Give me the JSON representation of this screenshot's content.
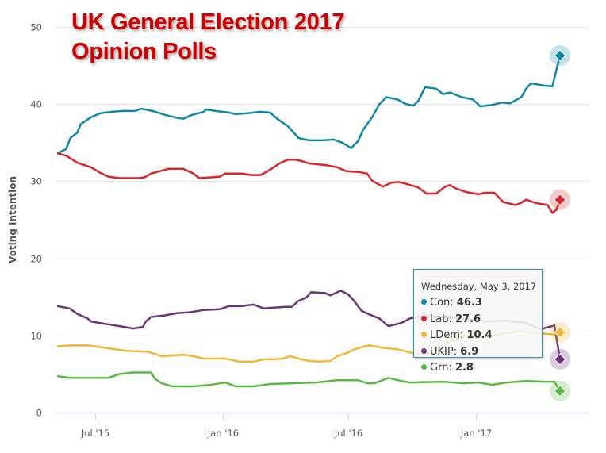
{
  "chart_data": {
    "type": "line",
    "title": "UK General Election 2017\nOpinion Polls",
    "title_lines": [
      "UK General Election 2017",
      "Opinion Polls"
    ],
    "xlabel": "",
    "ylabel": "Voting Intention",
    "ylim": [
      0,
      50
    ],
    "y_ticks": [
      0,
      10,
      20,
      30,
      40,
      50
    ],
    "x_range": [
      "2015-05-08",
      "2017-05-03"
    ],
    "x_ticks": [
      {
        "date": "2015-07-01",
        "label": "Jul '15"
      },
      {
        "date": "2016-01-01",
        "label": "Jan '16"
      },
      {
        "date": "2016-07-01",
        "label": "Jul '16"
      },
      {
        "date": "2017-01-01",
        "label": "Jan '17"
      }
    ],
    "grid": true,
    "legend": "none",
    "series": [
      {
        "name": "Con",
        "color": "#1187a8",
        "points": [
          [
            "2015-05-08",
            33.6
          ],
          [
            "2015-05-20",
            34.2
          ],
          [
            "2015-05-26",
            35.6
          ],
          [
            "2015-06-05",
            36.3
          ],
          [
            "2015-06-10",
            37.4
          ],
          [
            "2015-06-25",
            38.3
          ],
          [
            "2015-07-08",
            38.8
          ],
          [
            "2015-07-25",
            39.0
          ],
          [
            "2015-08-10",
            39.1
          ],
          [
            "2015-08-28",
            39.1
          ],
          [
            "2015-09-05",
            39.4
          ],
          [
            "2015-09-22",
            39.1
          ],
          [
            "2015-10-10",
            38.6
          ],
          [
            "2015-10-28",
            38.2
          ],
          [
            "2015-11-05",
            38.1
          ],
          [
            "2015-11-18",
            38.6
          ],
          [
            "2015-12-05",
            39.0
          ],
          [
            "2015-12-08",
            39.3
          ],
          [
            "2015-12-22",
            39.1
          ],
          [
            "2016-01-10",
            38.9
          ],
          [
            "2016-01-20",
            38.7
          ],
          [
            "2016-02-05",
            38.8
          ],
          [
            "2016-02-25",
            39.0
          ],
          [
            "2016-03-10",
            38.9
          ],
          [
            "2016-03-20",
            38.1
          ],
          [
            "2016-04-05",
            37.1
          ],
          [
            "2016-04-20",
            35.6
          ],
          [
            "2016-05-05",
            35.3
          ],
          [
            "2016-05-25",
            35.3
          ],
          [
            "2016-06-10",
            35.4
          ],
          [
            "2016-06-22",
            35.0
          ],
          [
            "2016-07-05",
            34.3
          ],
          [
            "2016-07-15",
            35.2
          ],
          [
            "2016-07-22",
            36.6
          ],
          [
            "2016-08-05",
            38.4
          ],
          [
            "2016-08-15",
            40.0
          ],
          [
            "2016-08-25",
            40.9
          ],
          [
            "2016-09-10",
            40.6
          ],
          [
            "2016-09-22",
            40.0
          ],
          [
            "2016-10-03",
            39.8
          ],
          [
            "2016-10-10",
            40.4
          ],
          [
            "2016-10-20",
            42.2
          ],
          [
            "2016-11-05",
            42.0
          ],
          [
            "2016-11-15",
            41.3
          ],
          [
            "2016-11-25",
            41.5
          ],
          [
            "2016-12-12",
            40.9
          ],
          [
            "2016-12-28",
            40.6
          ],
          [
            "2017-01-08",
            39.7
          ],
          [
            "2017-01-25",
            39.9
          ],
          [
            "2017-02-08",
            40.2
          ],
          [
            "2017-02-20",
            40.1
          ],
          [
            "2017-03-08",
            40.9
          ],
          [
            "2017-03-15",
            42.0
          ],
          [
            "2017-03-22",
            42.7
          ],
          [
            "2017-04-10",
            42.4
          ],
          [
            "2017-04-22",
            42.3
          ],
          [
            "2017-05-03",
            46.3
          ]
        ]
      },
      {
        "name": "Lab",
        "color": "#d8262c",
        "points": [
          [
            "2015-05-08",
            33.6
          ],
          [
            "2015-05-20",
            33.3
          ],
          [
            "2015-06-05",
            32.4
          ],
          [
            "2015-06-25",
            31.8
          ],
          [
            "2015-07-08",
            31.1
          ],
          [
            "2015-07-20",
            30.6
          ],
          [
            "2015-08-05",
            30.4
          ],
          [
            "2015-09-01",
            30.4
          ],
          [
            "2015-09-10",
            30.5
          ],
          [
            "2015-09-20",
            31.0
          ],
          [
            "2015-10-15",
            31.6
          ],
          [
            "2015-11-05",
            31.6
          ],
          [
            "2015-11-20",
            31.0
          ],
          [
            "2015-11-28",
            30.4
          ],
          [
            "2015-12-15",
            30.5
          ],
          [
            "2015-12-28",
            30.6
          ],
          [
            "2016-01-05",
            31.0
          ],
          [
            "2016-01-28",
            31.0
          ],
          [
            "2016-02-12",
            30.8
          ],
          [
            "2016-02-25",
            30.8
          ],
          [
            "2016-03-10",
            31.5
          ],
          [
            "2016-03-25",
            32.4
          ],
          [
            "2016-04-05",
            32.8
          ],
          [
            "2016-04-15",
            32.8
          ],
          [
            "2016-04-25",
            32.6
          ],
          [
            "2016-05-05",
            32.3
          ],
          [
            "2016-05-28",
            32.1
          ],
          [
            "2016-06-15",
            31.8
          ],
          [
            "2016-06-28",
            31.3
          ],
          [
            "2016-07-15",
            31.2
          ],
          [
            "2016-07-28",
            31.0
          ],
          [
            "2016-08-05",
            30.0
          ],
          [
            "2016-08-20",
            29.3
          ],
          [
            "2016-09-01",
            29.8
          ],
          [
            "2016-09-12",
            29.9
          ],
          [
            "2016-09-25",
            29.6
          ],
          [
            "2016-10-10",
            29.2
          ],
          [
            "2016-10-22",
            28.4
          ],
          [
            "2016-11-05",
            28.4
          ],
          [
            "2016-11-18",
            29.3
          ],
          [
            "2016-11-25",
            29.5
          ],
          [
            "2016-12-05",
            29.0
          ],
          [
            "2016-12-18",
            28.6
          ],
          [
            "2017-01-05",
            28.3
          ],
          [
            "2017-01-15",
            28.5
          ],
          [
            "2017-01-28",
            28.5
          ],
          [
            "2017-02-10",
            27.3
          ],
          [
            "2017-02-28",
            26.9
          ],
          [
            "2017-03-08",
            27.2
          ],
          [
            "2017-03-15",
            27.6
          ],
          [
            "2017-03-28",
            27.2
          ],
          [
            "2017-04-15",
            26.9
          ],
          [
            "2017-04-22",
            25.9
          ],
          [
            "2017-04-28",
            26.3
          ],
          [
            "2017-05-03",
            27.6
          ]
        ]
      },
      {
        "name": "LDem",
        "color": "#efb734",
        "points": [
          [
            "2015-05-08",
            8.6
          ],
          [
            "2015-05-25",
            8.7
          ],
          [
            "2015-06-20",
            8.7
          ],
          [
            "2015-07-15",
            8.4
          ],
          [
            "2015-08-15",
            8.0
          ],
          [
            "2015-09-15",
            7.9
          ],
          [
            "2015-09-25",
            7.6
          ],
          [
            "2015-10-05",
            7.3
          ],
          [
            "2015-10-20",
            7.4
          ],
          [
            "2015-11-05",
            7.5
          ],
          [
            "2015-11-20",
            7.3
          ],
          [
            "2015-12-05",
            7.0
          ],
          [
            "2016-01-05",
            7.0
          ],
          [
            "2016-01-25",
            6.6
          ],
          [
            "2016-02-15",
            6.6
          ],
          [
            "2016-03-01",
            6.9
          ],
          [
            "2016-03-15",
            6.9
          ],
          [
            "2016-03-28",
            7.0
          ],
          [
            "2016-04-08",
            7.3
          ],
          [
            "2016-04-20",
            7.0
          ],
          [
            "2016-05-05",
            6.7
          ],
          [
            "2016-05-20",
            6.6
          ],
          [
            "2016-06-05",
            6.7
          ],
          [
            "2016-06-15",
            7.3
          ],
          [
            "2016-06-28",
            7.7
          ],
          [
            "2016-07-10",
            8.2
          ],
          [
            "2016-07-20",
            8.5
          ],
          [
            "2016-08-01",
            8.7
          ],
          [
            "2016-08-20",
            8.4
          ],
          [
            "2016-09-10",
            8.2
          ],
          [
            "2016-09-28",
            7.8
          ],
          [
            "2016-10-15",
            7.5
          ],
          [
            "2016-10-28",
            7.8
          ],
          [
            "2016-11-10",
            8.5
          ],
          [
            "2016-11-28",
            9.3
          ],
          [
            "2016-12-15",
            9.8
          ],
          [
            "2017-01-05",
            10.2
          ],
          [
            "2017-01-25",
            10.0
          ],
          [
            "2017-02-15",
            10.3
          ],
          [
            "2017-03-05",
            10.6
          ],
          [
            "2017-03-25",
            10.3
          ],
          [
            "2017-04-15",
            10.2
          ],
          [
            "2017-04-25",
            10.1
          ],
          [
            "2017-05-03",
            10.4
          ]
        ]
      },
      {
        "name": "UKIP",
        "color": "#6b3579",
        "points": [
          [
            "2015-05-08",
            13.8
          ],
          [
            "2015-05-25",
            13.5
          ],
          [
            "2015-06-05",
            12.8
          ],
          [
            "2015-06-20",
            12.2
          ],
          [
            "2015-06-25",
            11.8
          ],
          [
            "2015-07-15",
            11.5
          ],
          [
            "2015-08-05",
            11.2
          ],
          [
            "2015-08-25",
            10.9
          ],
          [
            "2015-09-08",
            11.1
          ],
          [
            "2015-09-12",
            11.8
          ],
          [
            "2015-09-20",
            12.4
          ],
          [
            "2015-10-10",
            12.6
          ],
          [
            "2015-10-28",
            12.9
          ],
          [
            "2015-11-15",
            13.0
          ],
          [
            "2015-12-05",
            13.3
          ],
          [
            "2015-12-28",
            13.4
          ],
          [
            "2016-01-10",
            13.8
          ],
          [
            "2016-01-28",
            13.8
          ],
          [
            "2016-02-15",
            14.0
          ],
          [
            "2016-03-01",
            13.5
          ],
          [
            "2016-03-15",
            13.6
          ],
          [
            "2016-04-01",
            13.7
          ],
          [
            "2016-04-10",
            13.7
          ],
          [
            "2016-04-20",
            14.5
          ],
          [
            "2016-05-01",
            14.9
          ],
          [
            "2016-05-08",
            15.6
          ],
          [
            "2016-05-28",
            15.5
          ],
          [
            "2016-06-05",
            15.2
          ],
          [
            "2016-06-20",
            15.8
          ],
          [
            "2016-07-01",
            15.3
          ],
          [
            "2016-07-10",
            14.4
          ],
          [
            "2016-07-20",
            13.2
          ],
          [
            "2016-08-01",
            12.7
          ],
          [
            "2016-08-15",
            12.2
          ],
          [
            "2016-08-28",
            11.2
          ],
          [
            "2016-09-15",
            11.6
          ],
          [
            "2016-09-28",
            12.2
          ],
          [
            "2016-10-15",
            12.5
          ],
          [
            "2016-11-15",
            12.4
          ],
          [
            "2016-12-15",
            12.2
          ],
          [
            "2017-01-15",
            11.8
          ],
          [
            "2017-02-15",
            11.9
          ],
          [
            "2017-03-15",
            11.6
          ],
          [
            "2017-04-05",
            10.8
          ],
          [
            "2017-04-25",
            11.3
          ],
          [
            "2017-05-03",
            6.9
          ]
        ]
      },
      {
        "name": "Grn",
        "color": "#5cb946",
        "points": [
          [
            "2015-05-08",
            4.7
          ],
          [
            "2015-05-25",
            4.5
          ],
          [
            "2015-07-05",
            4.5
          ],
          [
            "2015-07-20",
            4.5
          ],
          [
            "2015-08-05",
            5.0
          ],
          [
            "2015-08-25",
            5.2
          ],
          [
            "2015-09-20",
            5.2
          ],
          [
            "2015-09-25",
            4.4
          ],
          [
            "2015-10-05",
            3.8
          ],
          [
            "2015-10-20",
            3.4
          ],
          [
            "2015-11-20",
            3.4
          ],
          [
            "2015-12-15",
            3.6
          ],
          [
            "2016-01-05",
            3.9
          ],
          [
            "2016-01-20",
            3.4
          ],
          [
            "2016-02-15",
            3.4
          ],
          [
            "2016-03-10",
            3.7
          ],
          [
            "2016-04-10",
            3.8
          ],
          [
            "2016-05-15",
            3.9
          ],
          [
            "2016-06-15",
            4.2
          ],
          [
            "2016-07-15",
            4.2
          ],
          [
            "2016-07-28",
            3.8
          ],
          [
            "2016-08-08",
            3.8
          ],
          [
            "2016-08-28",
            4.5
          ],
          [
            "2016-09-15",
            4.1
          ],
          [
            "2016-09-28",
            3.9
          ],
          [
            "2016-11-15",
            4.0
          ],
          [
            "2016-12-15",
            3.8
          ],
          [
            "2017-01-05",
            3.9
          ],
          [
            "2017-01-25",
            3.6
          ],
          [
            "2017-02-15",
            3.9
          ],
          [
            "2017-03-15",
            4.1
          ],
          [
            "2017-04-10",
            4.0
          ],
          [
            "2017-04-25",
            4.0
          ],
          [
            "2017-05-03",
            2.8
          ]
        ]
      }
    ],
    "tooltip": {
      "date": "Wednesday, May 3, 2017",
      "rows": [
        {
          "name": "Con",
          "value": "46.3",
          "color": "#1187a8"
        },
        {
          "name": "Lab",
          "value": "27.6",
          "color": "#d8262c"
        },
        {
          "name": "LDem",
          "value": "10.4",
          "color": "#efb734"
        },
        {
          "name": "UKIP",
          "value": "6.9",
          "color": "#6b3579"
        },
        {
          "name": "Grn",
          "value": "2.8",
          "color": "#5cb946"
        }
      ]
    }
  }
}
